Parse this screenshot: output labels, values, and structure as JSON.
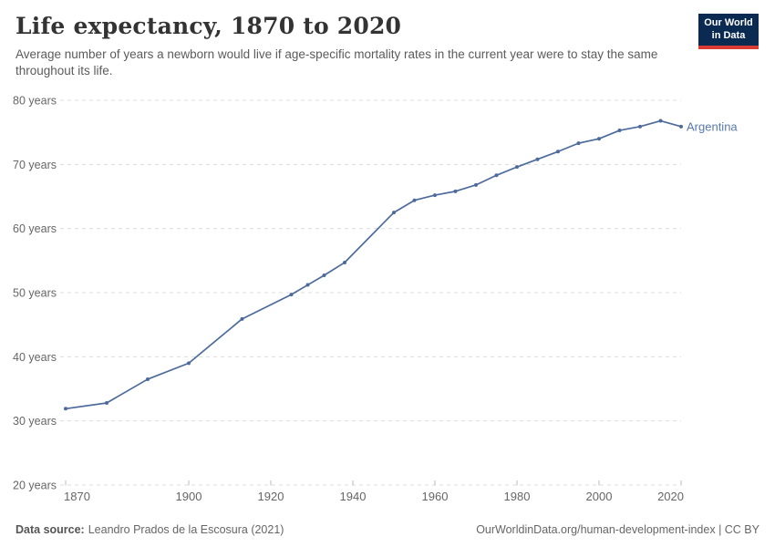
{
  "header": {
    "title": "Life expectancy, 1870 to 2020",
    "subtitle": "Average number of years a newborn would live if age-specific mortality rates in the current year were to stay the same throughout its life.",
    "logo": {
      "line1": "Our World",
      "line2": "in Data"
    }
  },
  "footer": {
    "source_label": "Data source:",
    "source_value": "Leandro Prados de la Escosura (2021)",
    "credit": "OurWorldinData.org/human-development-index | CC BY"
  },
  "colors": {
    "series": "#4c6a9c",
    "entity_label": "#5879ae",
    "grid": "#dcdcdc",
    "tick_mark": "#bbbbbb",
    "tick_text": "#666666",
    "logo_bg": "#0a2a52",
    "logo_bar": "#d93a34"
  },
  "chart_data": {
    "type": "line",
    "title": "Life expectancy, 1870 to 2020",
    "xlabel": "",
    "ylabel": "",
    "xlim": [
      1870,
      2020
    ],
    "ylim": [
      20,
      80
    ],
    "grid": true,
    "legend_position": "end-of-line-label",
    "xticks": [
      1870,
      1900,
      1920,
      1940,
      1960,
      1980,
      2000,
      2020
    ],
    "yticks": [
      20,
      30,
      40,
      50,
      60,
      70,
      80
    ],
    "ytick_suffix": " years",
    "series": [
      {
        "name": "Argentina",
        "color": "#4c6a9c",
        "x": [
          1870,
          1880,
          1890,
          1900,
          1913,
          1925,
          1929,
          1933,
          1938,
          1950,
          1955,
          1960,
          1965,
          1970,
          1975,
          1980,
          1985,
          1990,
          1995,
          2000,
          2005,
          2010,
          2015,
          2020
        ],
        "y": [
          31.9,
          32.8,
          36.5,
          39.0,
          45.9,
          49.7,
          51.2,
          52.7,
          54.7,
          62.5,
          64.4,
          65.2,
          65.8,
          66.8,
          68.3,
          69.6,
          70.8,
          72.0,
          73.3,
          74.0,
          75.3,
          75.9,
          76.8,
          75.9
        ]
      }
    ]
  }
}
